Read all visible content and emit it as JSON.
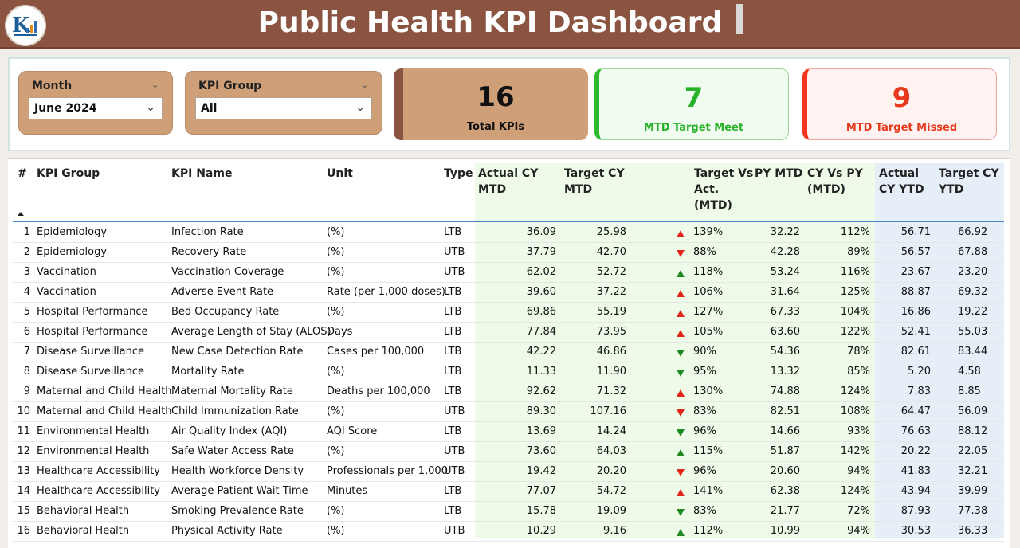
{
  "header": {
    "title": "Public Health KPI Dashboard",
    "logo_icon": "kpi-logo-icon",
    "bg_color": "#8a5440"
  },
  "filters": {
    "month": {
      "label": "Month",
      "value": "June 2024"
    },
    "kpi_group": {
      "label": "KPI Group",
      "value": "All"
    }
  },
  "cards": {
    "total": {
      "value": "16",
      "label": "Total KPIs"
    },
    "meet": {
      "value": "7",
      "label": "MTD Target Meet",
      "color": "#28b228"
    },
    "missed": {
      "value": "9",
      "label": "MTD Target Missed",
      "color": "#e63b1e"
    }
  },
  "table": {
    "headers": {
      "num": "#",
      "group": "KPI Group",
      "name": "KPI Name",
      "unit": "Unit",
      "type": "Type",
      "actual_mtd_1": "Actual CY",
      "actual_mtd_2": "MTD",
      "target_mtd_1": "Target CY",
      "target_mtd_2": "MTD",
      "tva_1": "Target Vs",
      "tva_2": "Act.",
      "tva_3": "(MTD)",
      "py_mtd": "PY MTD",
      "cyvspy_1": "CY Vs PY",
      "cyvspy_2": "(MTD)",
      "actual_ytd_1": "Actual",
      "actual_ytd_2": "CY YTD",
      "target_ytd_1": "Target CY",
      "target_ytd_2": "YTD"
    },
    "rows": [
      {
        "num": "1",
        "group": "Epidemiology",
        "name": "Infection Rate",
        "unit": "(%)",
        "type": "LTB",
        "actual_mtd": "36.09",
        "target_mtd": "25.98",
        "arrow": "up-red",
        "tva": "139%",
        "py_mtd": "32.22",
        "cyvspy": "112%",
        "actual_ytd": "56.71",
        "target_ytd": "66.92"
      },
      {
        "num": "2",
        "group": "Epidemiology",
        "name": "Recovery Rate",
        "unit": "(%)",
        "type": "UTB",
        "actual_mtd": "37.79",
        "target_mtd": "42.70",
        "arrow": "down-red",
        "tva": "88%",
        "py_mtd": "42.28",
        "cyvspy": "89%",
        "actual_ytd": "56.57",
        "target_ytd": "67.88"
      },
      {
        "num": "3",
        "group": "Vaccination",
        "name": "Vaccination Coverage",
        "unit": "(%)",
        "type": "UTB",
        "actual_mtd": "62.02",
        "target_mtd": "52.72",
        "arrow": "up-green",
        "tva": "118%",
        "py_mtd": "53.24",
        "cyvspy": "116%",
        "actual_ytd": "23.67",
        "target_ytd": "23.20"
      },
      {
        "num": "4",
        "group": "Vaccination",
        "name": "Adverse Event Rate",
        "unit": "Rate (per 1,000 doses)",
        "type": "LTB",
        "actual_mtd": "39.60",
        "target_mtd": "37.22",
        "arrow": "up-red",
        "tva": "106%",
        "py_mtd": "31.64",
        "cyvspy": "125%",
        "actual_ytd": "88.87",
        "target_ytd": "69.32"
      },
      {
        "num": "5",
        "group": "Hospital Performance",
        "name": "Bed Occupancy Rate",
        "unit": "(%)",
        "type": "LTB",
        "actual_mtd": "69.86",
        "target_mtd": "55.19",
        "arrow": "up-red",
        "tva": "127%",
        "py_mtd": "67.33",
        "cyvspy": "104%",
        "actual_ytd": "16.86",
        "target_ytd": "19.22"
      },
      {
        "num": "6",
        "group": "Hospital Performance",
        "name": "Average Length of Stay (ALOS)",
        "unit": "Days",
        "type": "LTB",
        "actual_mtd": "77.84",
        "target_mtd": "73.95",
        "arrow": "up-red",
        "tva": "105%",
        "py_mtd": "63.60",
        "cyvspy": "122%",
        "actual_ytd": "52.41",
        "target_ytd": "55.03"
      },
      {
        "num": "7",
        "group": "Disease Surveillance",
        "name": "New Case Detection Rate",
        "unit": "Cases per 100,000",
        "type": "LTB",
        "actual_mtd": "42.22",
        "target_mtd": "46.86",
        "arrow": "down-green",
        "tva": "90%",
        "py_mtd": "54.36",
        "cyvspy": "78%",
        "actual_ytd": "82.61",
        "target_ytd": "83.44"
      },
      {
        "num": "8",
        "group": "Disease Surveillance",
        "name": "Mortality Rate",
        "unit": "(%)",
        "type": "LTB",
        "actual_mtd": "11.33",
        "target_mtd": "11.90",
        "arrow": "down-green",
        "tva": "95%",
        "py_mtd": "13.32",
        "cyvspy": "85%",
        "actual_ytd": "5.20",
        "target_ytd": "4.58"
      },
      {
        "num": "9",
        "group": "Maternal and Child Health",
        "name": "Maternal Mortality Rate",
        "unit": "Deaths per 100,000",
        "type": "LTB",
        "actual_mtd": "92.62",
        "target_mtd": "71.32",
        "arrow": "up-red",
        "tva": "130%",
        "py_mtd": "74.88",
        "cyvspy": "124%",
        "actual_ytd": "7.83",
        "target_ytd": "8.85"
      },
      {
        "num": "10",
        "group": "Maternal and Child Health",
        "name": "Child Immunization Rate",
        "unit": "(%)",
        "type": "UTB",
        "actual_mtd": "89.30",
        "target_mtd": "107.16",
        "arrow": "down-red",
        "tva": "83%",
        "py_mtd": "82.51",
        "cyvspy": "108%",
        "actual_ytd": "64.47",
        "target_ytd": "56.09"
      },
      {
        "num": "11",
        "group": "Environmental Health",
        "name": "Air Quality Index (AQI)",
        "unit": "AQI Score",
        "type": "LTB",
        "actual_mtd": "13.69",
        "target_mtd": "14.24",
        "arrow": "down-green",
        "tva": "96%",
        "py_mtd": "14.66",
        "cyvspy": "93%",
        "actual_ytd": "76.63",
        "target_ytd": "88.12"
      },
      {
        "num": "12",
        "group": "Environmental Health",
        "name": "Safe Water Access Rate",
        "unit": "(%)",
        "type": "UTB",
        "actual_mtd": "73.60",
        "target_mtd": "64.03",
        "arrow": "up-green",
        "tva": "115%",
        "py_mtd": "51.87",
        "cyvspy": "142%",
        "actual_ytd": "20.22",
        "target_ytd": "22.05"
      },
      {
        "num": "13",
        "group": "Healthcare Accessibility",
        "name": "Health Workforce Density",
        "unit": "Professionals per 1,000",
        "type": "UTB",
        "actual_mtd": "19.42",
        "target_mtd": "20.20",
        "arrow": "down-red",
        "tva": "96%",
        "py_mtd": "20.60",
        "cyvspy": "94%",
        "actual_ytd": "41.83",
        "target_ytd": "32.21"
      },
      {
        "num": "14",
        "group": "Healthcare Accessibility",
        "name": "Average Patient Wait Time",
        "unit": "Minutes",
        "type": "LTB",
        "actual_mtd": "77.07",
        "target_mtd": "54.72",
        "arrow": "up-red",
        "tva": "141%",
        "py_mtd": "62.38",
        "cyvspy": "124%",
        "actual_ytd": "43.94",
        "target_ytd": "39.99"
      },
      {
        "num": "15",
        "group": "Behavioral Health",
        "name": "Smoking Prevalence Rate",
        "unit": "(%)",
        "type": "LTB",
        "actual_mtd": "15.78",
        "target_mtd": "19.09",
        "arrow": "down-green",
        "tva": "83%",
        "py_mtd": "21.77",
        "cyvspy": "72%",
        "actual_ytd": "87.93",
        "target_ytd": "77.38"
      },
      {
        "num": "16",
        "group": "Behavioral Health",
        "name": "Physical Activity Rate",
        "unit": "(%)",
        "type": "UTB",
        "actual_mtd": "10.29",
        "target_mtd": "9.16",
        "arrow": "up-green",
        "tva": "112%",
        "py_mtd": "10.99",
        "cyvspy": "94%",
        "actual_ytd": "30.53",
        "target_ytd": "36.33"
      }
    ]
  }
}
